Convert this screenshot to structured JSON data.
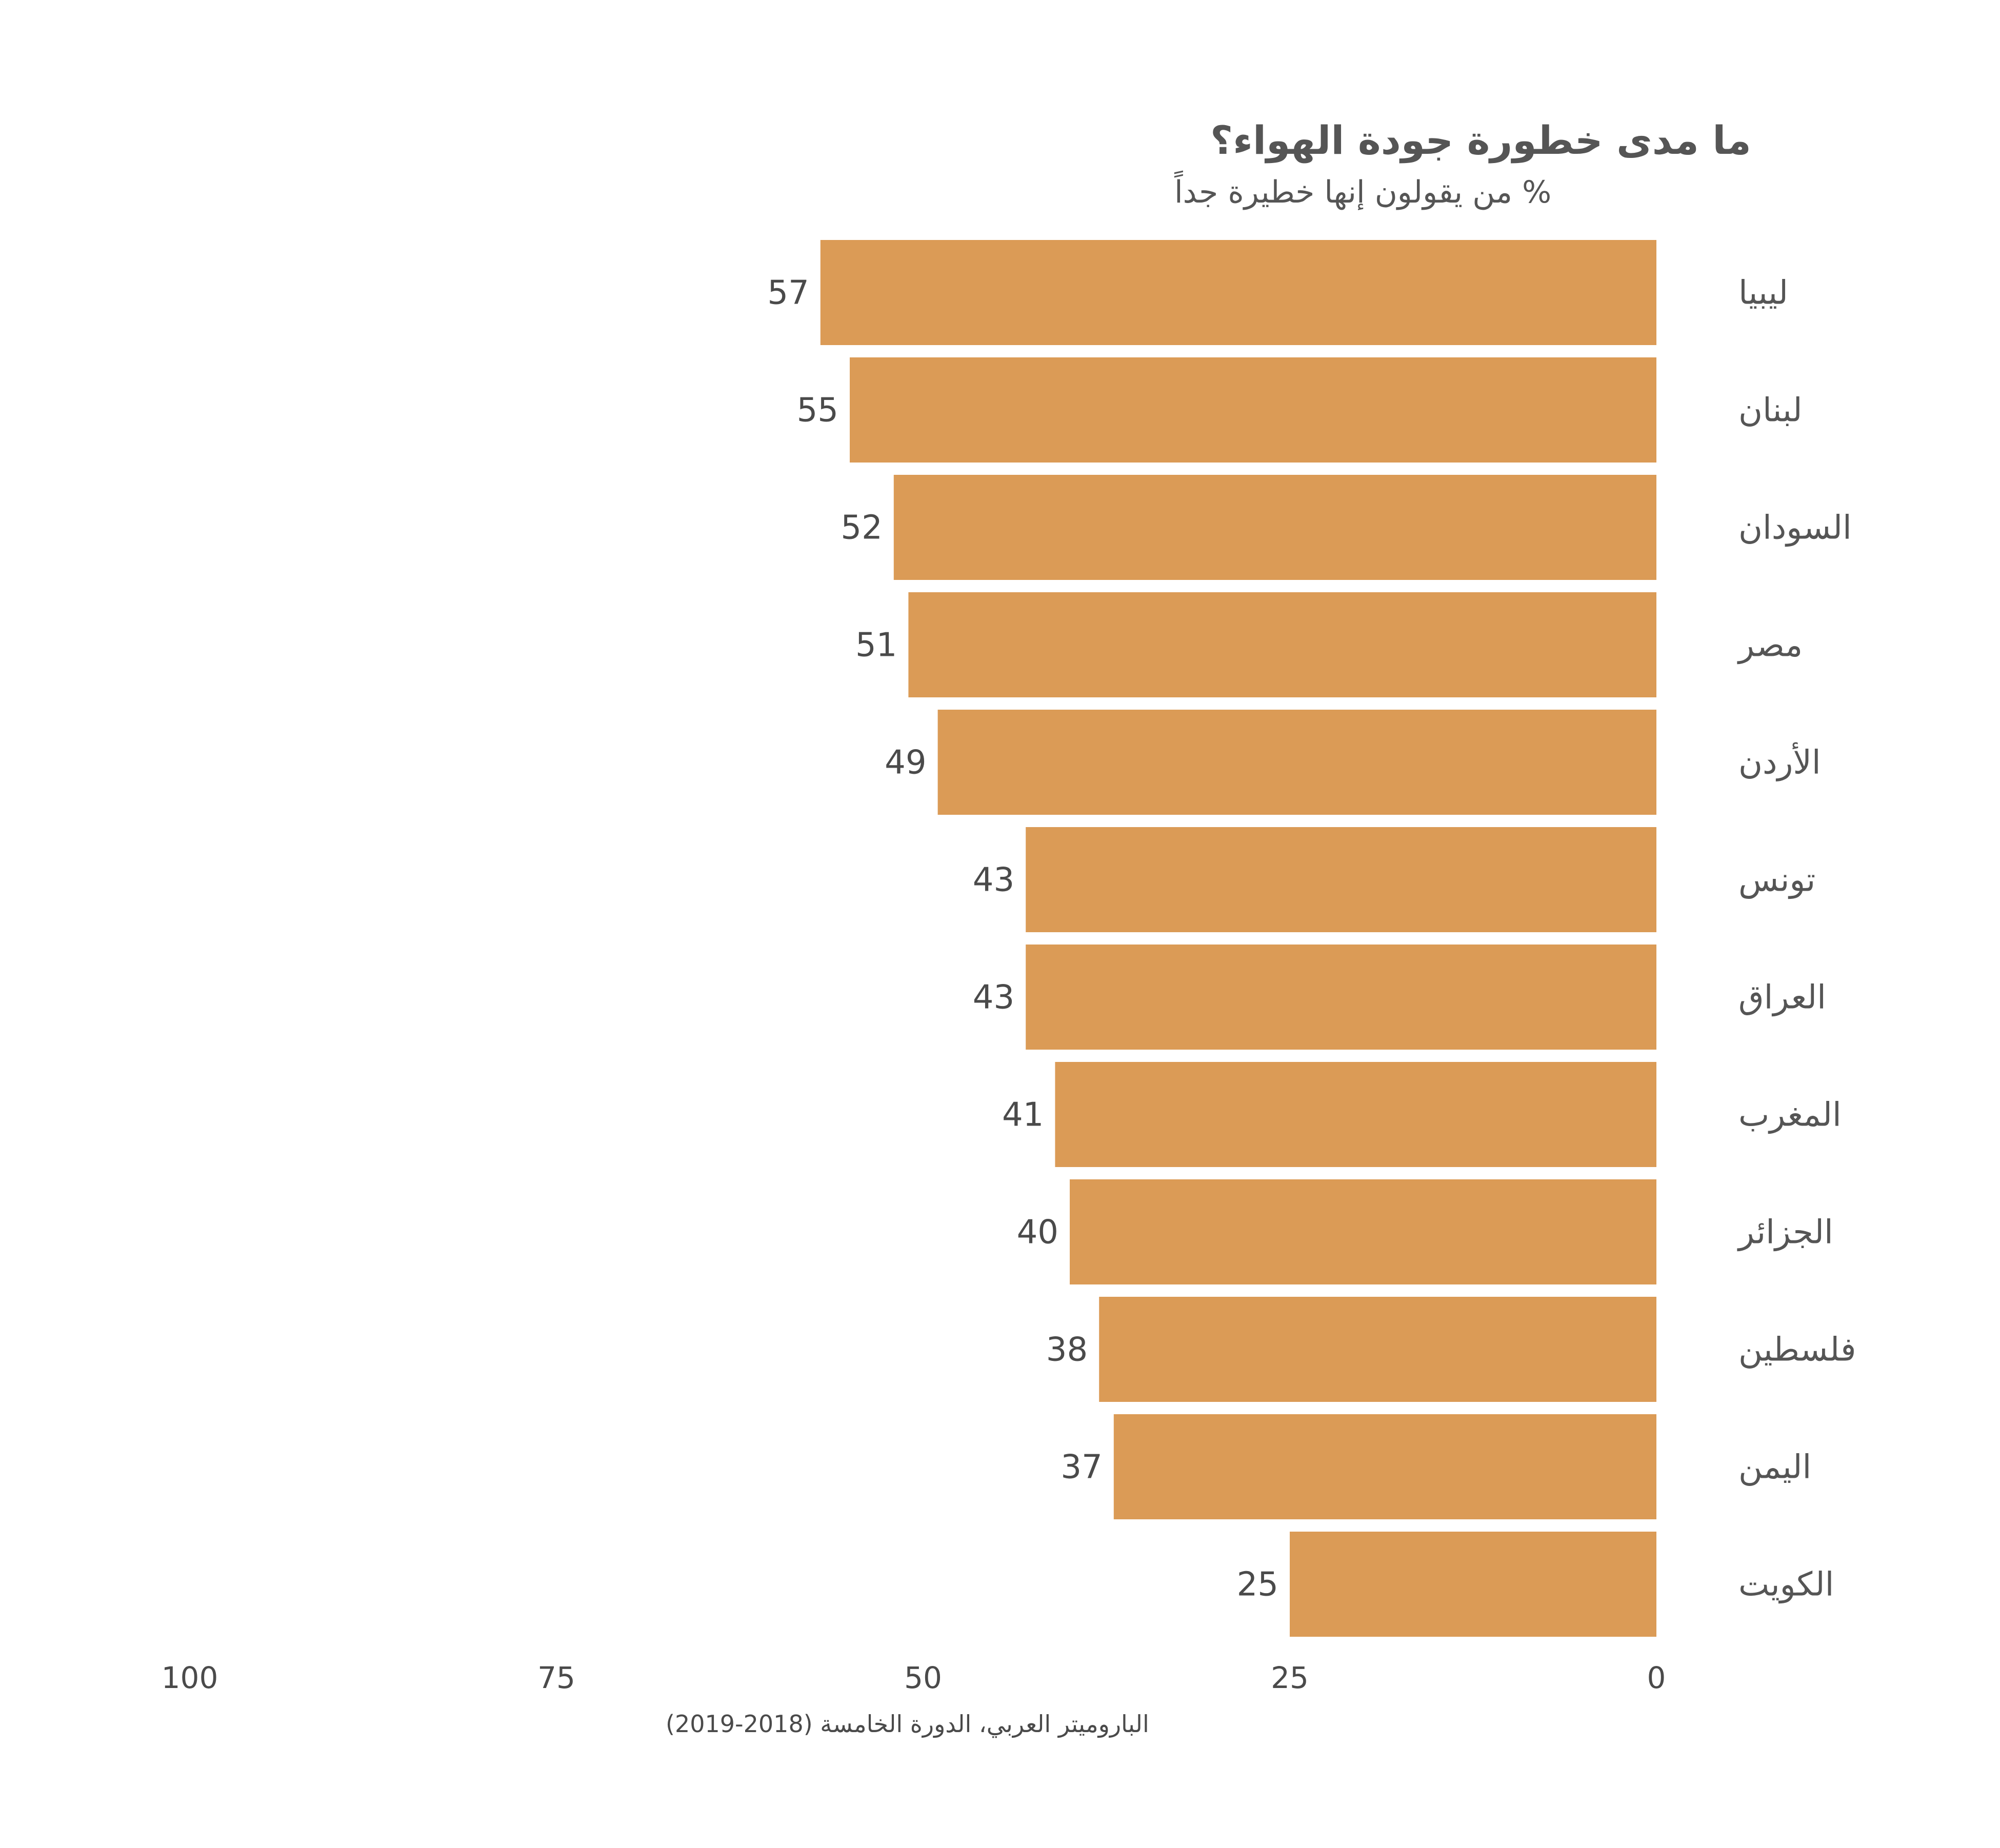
{
  "chart_data": {
    "type": "bar",
    "orientation": "horizontal",
    "direction": "rtl",
    "title": "ما مدى خطورة جودة الهواء؟",
    "subtitle": "% من يقولون إنها خطيرة جداً",
    "categories": [
      "ليبيا",
      "لبنان",
      "السودان",
      "مصر",
      "الأردن",
      "تونس",
      "العراق",
      "المغرب",
      "الجزائر",
      "فلسطين",
      "اليمن",
      "الكويت"
    ],
    "values": [
      57,
      55,
      52,
      51,
      49,
      43,
      43,
      41,
      40,
      38,
      37,
      25
    ],
    "xlim": [
      0,
      100
    ],
    "x_ticks": [
      100,
      75,
      50,
      25,
      0
    ],
    "xlabel": "",
    "ylabel": "",
    "grid": false,
    "legend": "none",
    "source": "الباروميتر العربي، الدورة الخامسة (2018-2019)",
    "bar_color": "#DB9B56"
  }
}
